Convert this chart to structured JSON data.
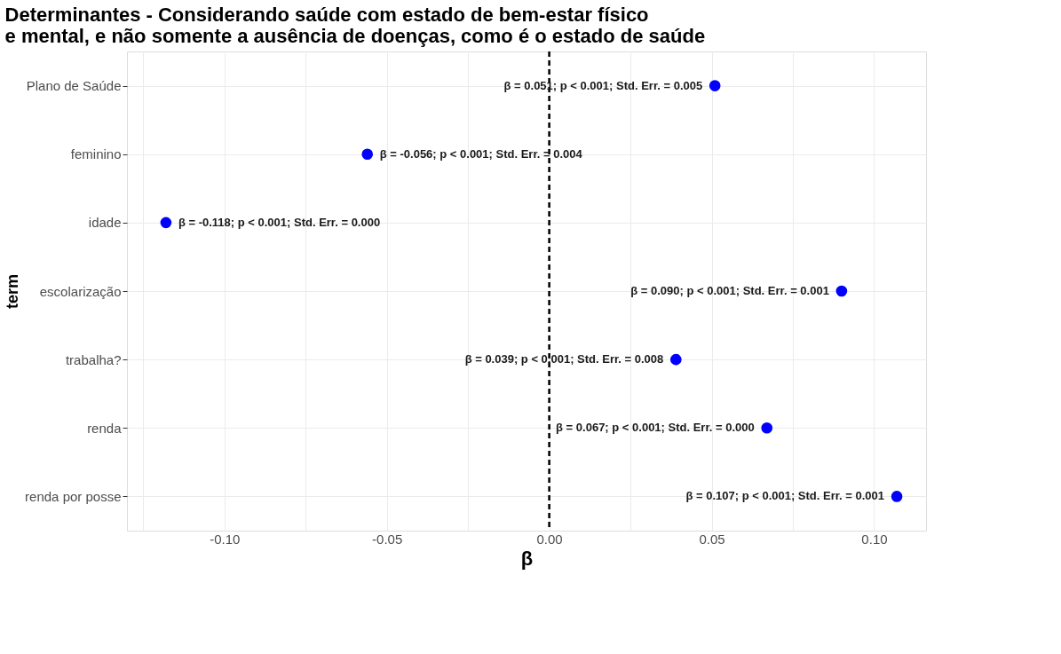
{
  "chart_data": {
    "type": "scatter",
    "orientation": "horizontal",
    "title": "Determinantes - Considerando saúde com estado de bem-estar físico\ne mental, e não somente a ausência de doenças, como é o estado de saúde",
    "xlabel": "β",
    "ylabel": "term",
    "categories": [
      "Plano de Saúde",
      "feminino",
      "idade",
      "escolarização",
      "trabalha?",
      "renda",
      "renda por posse"
    ],
    "series": [
      {
        "color": "#0000ff",
        "values": [
          0.051,
          -0.056,
          -0.118,
          0.09,
          0.039,
          0.067,
          0.107
        ],
        "value_labels": [
          "β = 0.051; p < 0.001; Std. Err. = 0.005",
          "β = -0.056; p < 0.001; Std. Err. = 0.004",
          "β = -0.118; p < 0.001; Std. Err. = 0.000",
          "β = 0.090; p < 0.001; Std. Err. = 0.001",
          "β = 0.039; p < 0.001; Std. Err. = 0.008",
          "β = 0.067; p < 0.001; Std. Err. = 0.000",
          "β = 0.107; p < 0.001; Std. Err. = 0.001"
        ]
      }
    ],
    "xlim": [
      -0.13,
      0.116
    ],
    "xticks": [
      {
        "value": -0.125,
        "label": null
      },
      {
        "value": -0.1,
        "label": "-0.10"
      },
      {
        "value": -0.075,
        "label": null
      },
      {
        "value": -0.05,
        "label": "-0.05"
      },
      {
        "value": -0.025,
        "label": null
      },
      {
        "value": 0,
        "label": "0.00"
      },
      {
        "value": 0.025,
        "label": null
      },
      {
        "value": 0.05,
        "label": "0.05"
      },
      {
        "value": 0.075,
        "label": null
      },
      {
        "value": 0.1,
        "label": "0.10"
      }
    ],
    "ref_lines": [
      {
        "axis": "x",
        "value": 0,
        "color": "#000000",
        "line_style": "dashed"
      }
    ],
    "grid": true,
    "marker": "circle"
  }
}
